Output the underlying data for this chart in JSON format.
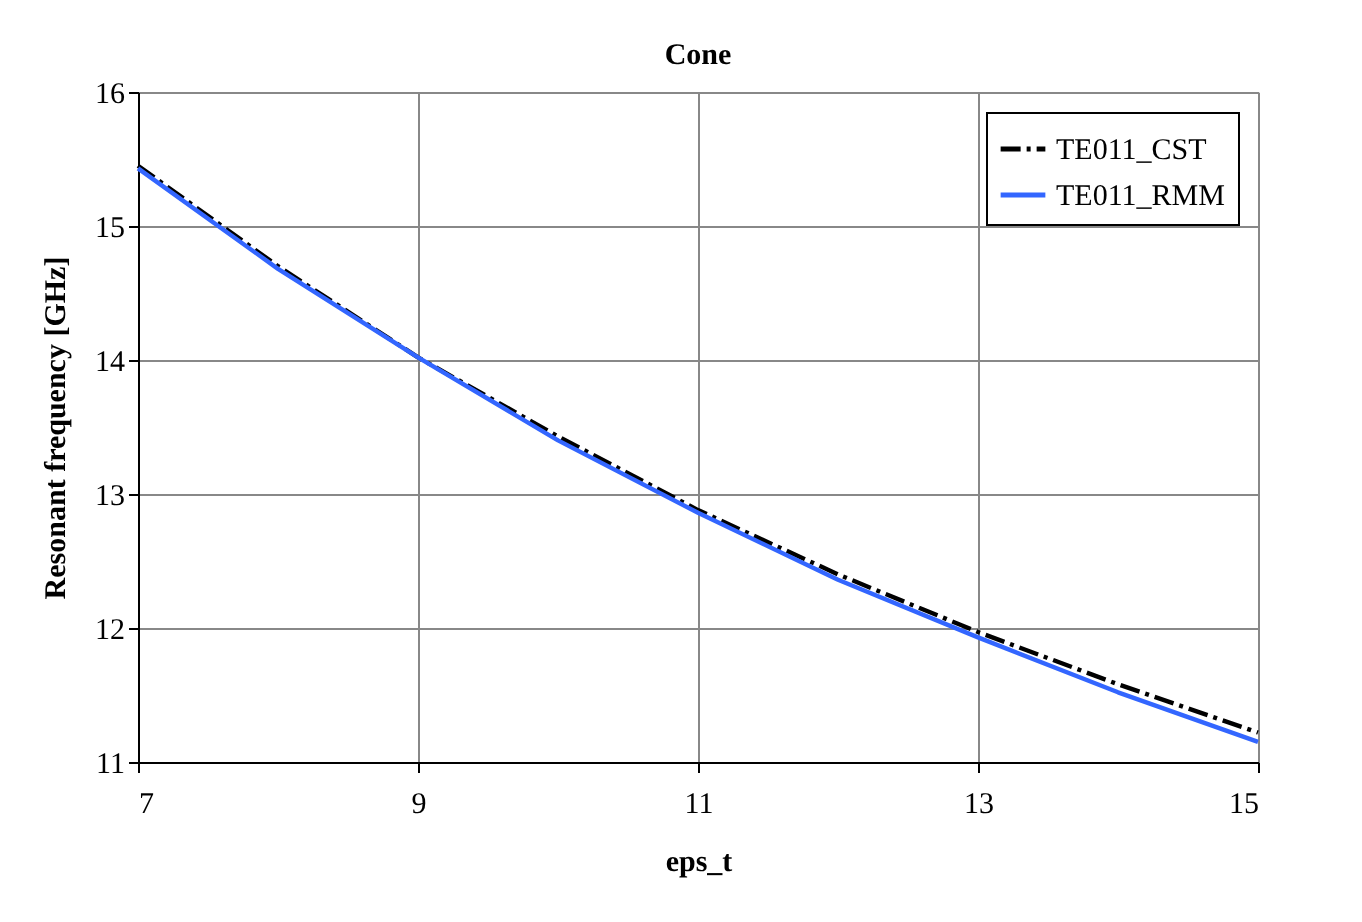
{
  "chart_data": {
    "type": "line",
    "title": "Cone",
    "xlabel": "eps_t",
    "ylabel": "Resonant frequency [GHz]",
    "x": [
      7,
      8,
      9,
      10,
      11,
      12,
      13,
      14,
      15
    ],
    "series": [
      {
        "name": "TE011_CST",
        "color": "#000000",
        "line_style": "dashed",
        "values": [
          15.45,
          14.7,
          14.02,
          13.43,
          12.88,
          12.4,
          11.97,
          11.58,
          11.22
        ]
      },
      {
        "name": "TE011_RMM",
        "color": "#3366ff",
        "line_style": "solid",
        "values": [
          15.43,
          14.68,
          14.02,
          13.4,
          12.86,
          12.36,
          11.93,
          11.52,
          11.15
        ]
      }
    ],
    "xlim": [
      7,
      15
    ],
    "xticks": [
      7,
      9,
      11,
      13,
      15
    ],
    "ylim": [
      11,
      16
    ],
    "yticks": [
      11,
      12,
      13,
      14,
      15,
      16
    ],
    "grid": true,
    "legend": "top right",
    "marker": "none"
  }
}
